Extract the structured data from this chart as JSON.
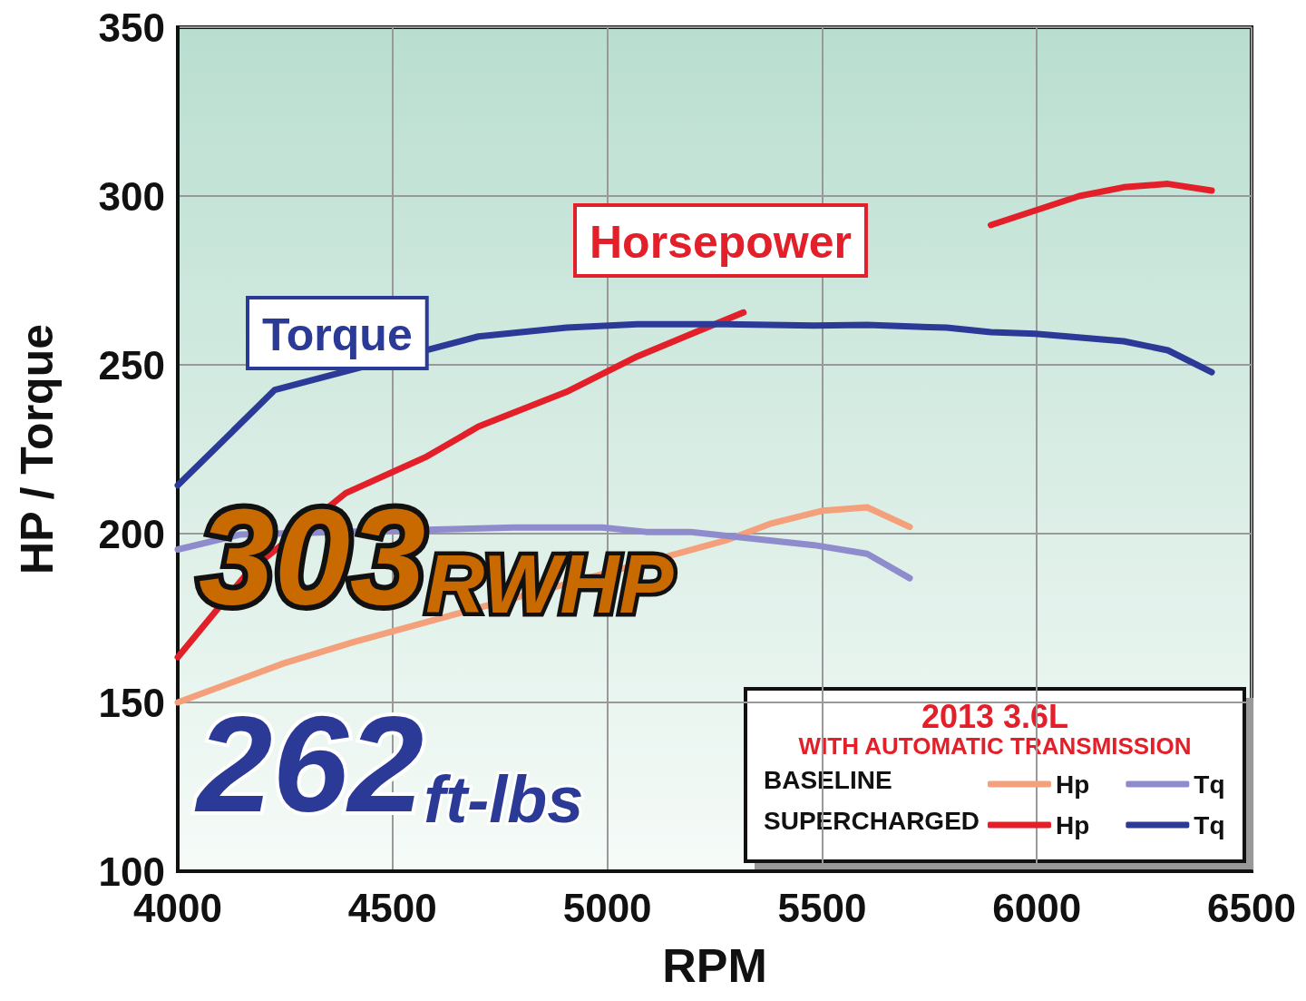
{
  "chart_data": {
    "type": "line",
    "xlabel": "RPM",
    "ylabel": "HP / Torque",
    "xlim": [
      4000,
      6500
    ],
    "xticks": [
      4000,
      4500,
      5000,
      5500,
      6000,
      6500
    ],
    "ylim": [
      100,
      350
    ],
    "yticks": [
      100,
      150,
      200,
      250,
      300,
      350
    ],
    "grid": true,
    "legend": "bottom right",
    "legend_title": "2013 3.6L\nWITH AUTOMATIC TRANSMISSION",
    "marker": "none",
    "line_style": "solid",
    "series": [
      {
        "name": "Hp",
        "color": "#f4a07a",
        "x": [
          4000,
          4247,
          4412,
          5276,
          5379,
          5502,
          5605,
          5704
        ],
        "values": [
          150,
          161.6,
          168,
          198,
          202.9,
          206.8,
          207.8,
          202
        ]
      },
      {
        "name": "Tq",
        "color": "#8e8ccc",
        "x": [
          4000,
          4144,
          4782,
          4988,
          5091,
          5193,
          5481,
          5605,
          5704
        ],
        "values": [
          195.3,
          199.7,
          201.8,
          201.8,
          200.5,
          200.5,
          196.6,
          194,
          186.8
        ]
      },
      {
        "name": "Hp",
        "color": "#e3202a",
        "x": [
          4000,
          4165,
          4391,
          4576,
          4700,
          4905,
          5070,
          5193,
          5317,
          5481,
          5605,
          5749,
          5893,
          6099,
          6202,
          6305,
          6407
        ],
        "values": [
          163.4,
          188.8,
          212,
          222.6,
          231.7,
          242,
          252.5,
          259,
          265.5,
          null,
          null,
          null,
          291.4,
          300,
          302.6,
          303.6,
          301.6
        ]
      },
      {
        "name": "Tq",
        "color": "#2b3a96",
        "x": [
          4000,
          4226,
          4700,
          4905,
          5070,
          5276,
          5481,
          5605,
          5790,
          5893,
          5996,
          6202,
          6305,
          6407
        ],
        "values": [
          214.3,
          242.6,
          258.4,
          261,
          262,
          262,
          261.6,
          261.8,
          261,
          259.7,
          259.2,
          257,
          254.3,
          247.8
        ]
      }
    ],
    "annotations": [
      "Horsepower",
      "Torque",
      "303RWHP",
      "262ft-lbs",
      "BASELINE",
      "SUPERCHARGED"
    ]
  }
}
